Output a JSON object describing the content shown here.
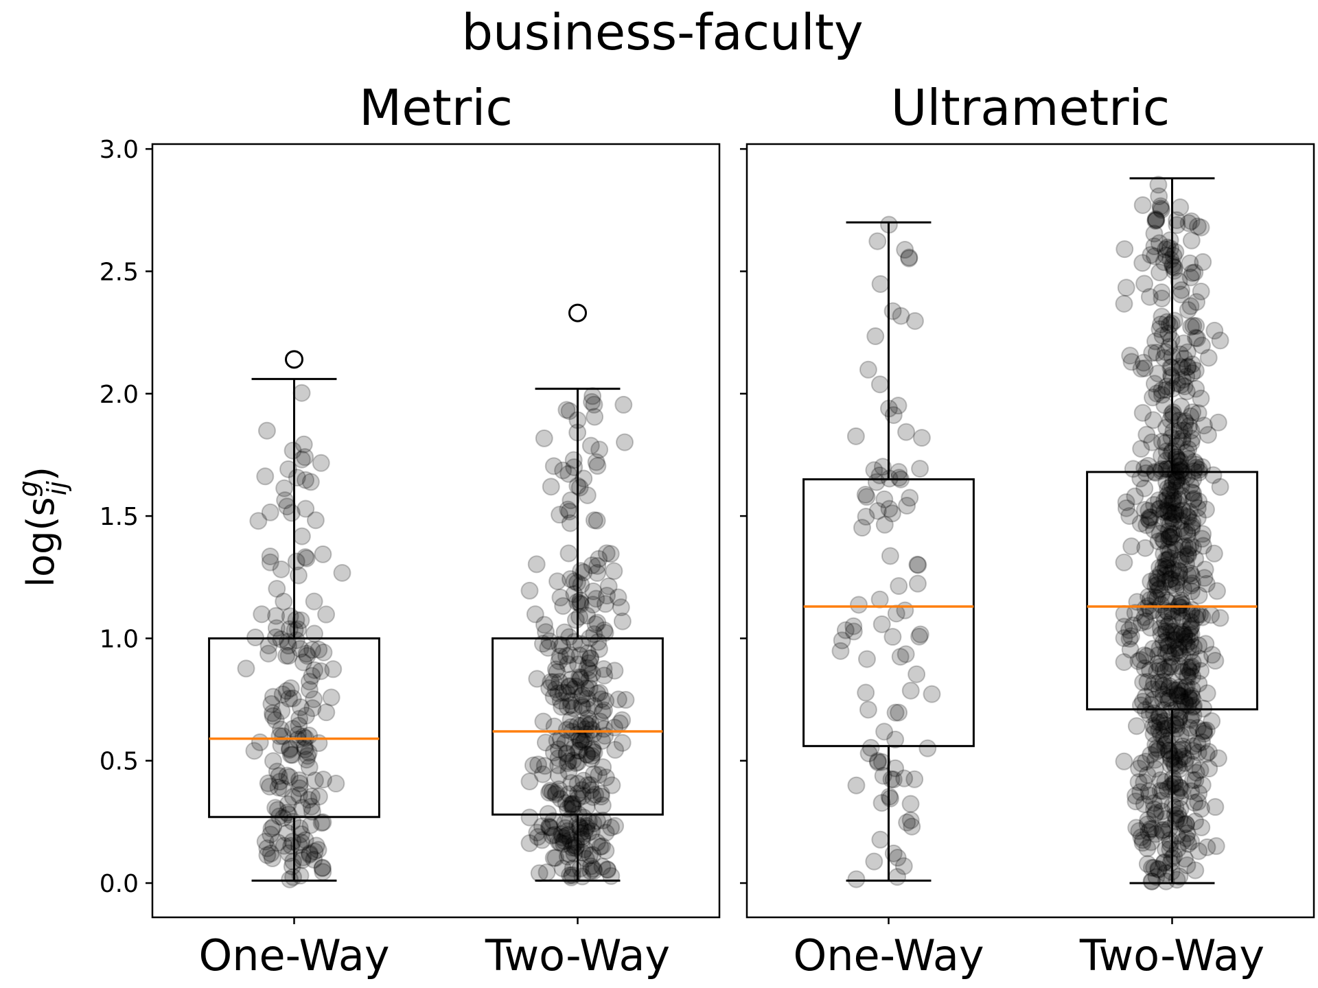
{
  "figure": {
    "title": "business-faculty",
    "ylabel_base": "log(s",
    "ylabel_sup": "g",
    "ylabel_sub": "ij",
    "ylabel_close": ")"
  },
  "colors": {
    "box": "#000000",
    "median": "#ff7f0e",
    "points": "#000000"
  },
  "chart_data": [
    {
      "type": "box",
      "title": "Metric",
      "categories": [
        "One-Way",
        "Two-Way"
      ],
      "ylim": [
        -0.14,
        3.02
      ],
      "yticks": [
        "0.0",
        "0.5",
        "1.0",
        "1.5",
        "2.0",
        "2.5",
        "3.0"
      ],
      "boxes": [
        {
          "name": "One-Way",
          "whisker_low": 0.01,
          "q1": 0.27,
          "median": 0.59,
          "q3": 1.0,
          "whisker_high": 2.06,
          "outliers": [
            2.14
          ],
          "n_points": 180
        },
        {
          "name": "Two-Way",
          "whisker_low": 0.01,
          "q1": 0.28,
          "median": 0.62,
          "q3": 1.0,
          "whisker_high": 2.02,
          "outliers": [
            2.33
          ],
          "n_points": 330
        }
      ]
    },
    {
      "type": "box",
      "title": "Ultrametric",
      "categories": [
        "One-Way",
        "Two-Way"
      ],
      "ylim": [
        -0.14,
        3.02
      ],
      "yticks": [
        "0.0",
        "0.5",
        "1.0",
        "1.5",
        "2.0",
        "2.5",
        "3.0"
      ],
      "boxes": [
        {
          "name": "One-Way",
          "whisker_low": 0.01,
          "q1": 0.56,
          "median": 1.13,
          "q3": 1.65,
          "whisker_high": 2.7,
          "outliers": [],
          "n_points": 95
        },
        {
          "name": "Two-Way",
          "whisker_low": 0.0,
          "q1": 0.71,
          "median": 1.13,
          "q3": 1.68,
          "whisker_high": 2.88,
          "outliers": [],
          "n_points": 720
        }
      ]
    }
  ]
}
